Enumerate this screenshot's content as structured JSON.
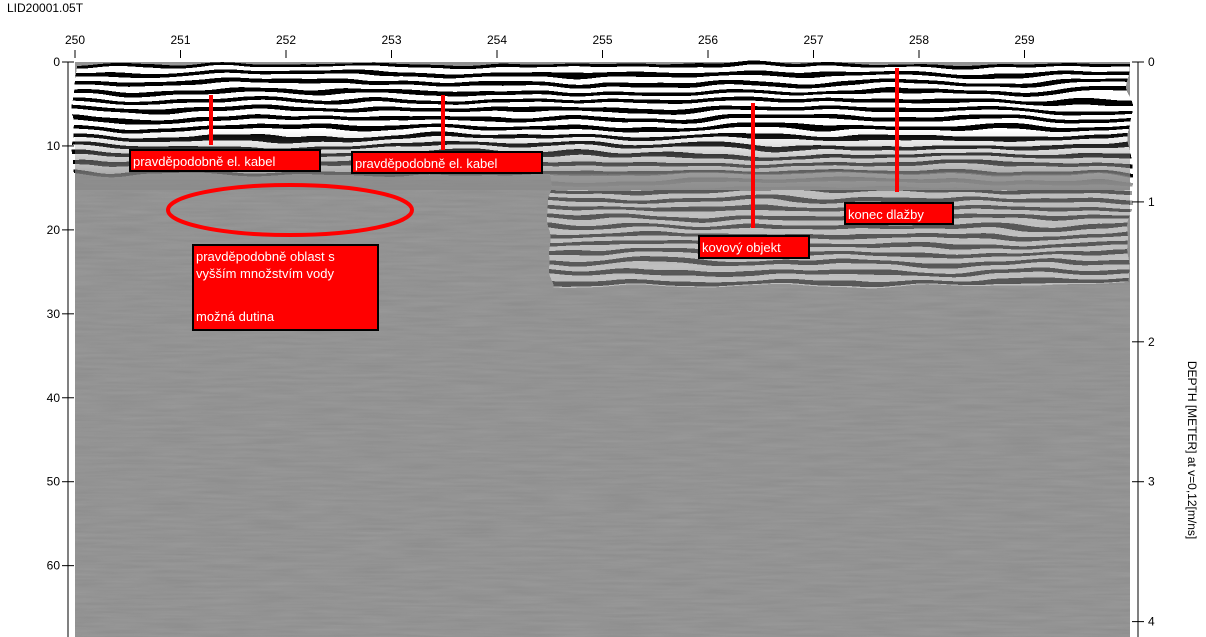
{
  "title": "LID20001.05T",
  "top_axis": {
    "lim": [
      250,
      260
    ],
    "ticks": [
      250,
      251,
      252,
      253,
      254,
      255,
      256,
      257,
      258,
      259
    ]
  },
  "left_axis": {
    "lim": [
      0,
      68.5
    ],
    "ticks": [
      0,
      10,
      20,
      30,
      40,
      50,
      60
    ]
  },
  "right_axis": {
    "label": "DEPTH [METER] at v=0,12[m/ns]",
    "lim": [
      0,
      4.11
    ],
    "ticks": [
      0,
      1,
      2,
      3,
      4
    ]
  },
  "annotations": [
    {
      "lines": [
        "pravděpodobně el. kabel"
      ]
    },
    {
      "lines": [
        "pravděpodobně el. kabel"
      ]
    },
    {
      "lines": [
        "pravděpodobně oblast s",
        "vyšším množstvím vody",
        "možná dutina"
      ]
    },
    {
      "lines": [
        "kovový objekt"
      ]
    },
    {
      "lines": [
        "konec dlažby"
      ]
    }
  ]
}
